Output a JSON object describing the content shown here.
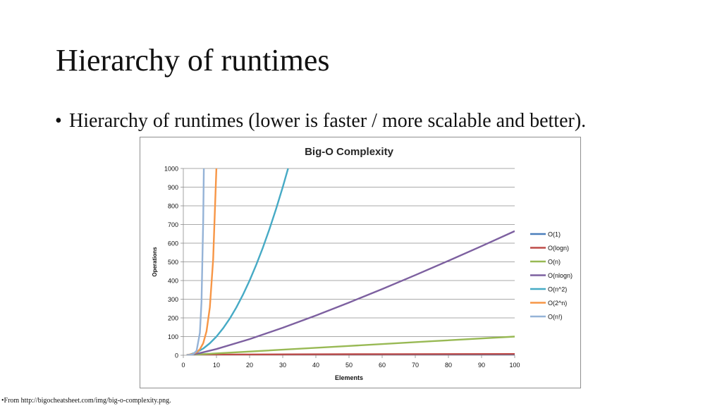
{
  "slide": {
    "title": "Hierarchy of runtimes",
    "bullet_marker": "•",
    "bullet_text": "Hierarchy of runtimes (lower is faster / more scalable and better).",
    "footnote_marker": "•",
    "footnote_text": "From http://bigocheatsheet.com/img/big-o-complexity.png."
  },
  "chart_data": {
    "type": "line",
    "title": "Big-O Complexity",
    "xlabel": "Elements",
    "ylabel": "Operations",
    "xlim": [
      0,
      100
    ],
    "ylim": [
      0,
      1000
    ],
    "x_ticks": [
      0,
      10,
      20,
      30,
      40,
      50,
      60,
      70,
      80,
      90,
      100
    ],
    "y_ticks": [
      0,
      100,
      200,
      300,
      400,
      500,
      600,
      700,
      800,
      900,
      1000
    ],
    "grid": "horizontal",
    "legend_position": "right",
    "series": [
      {
        "name": "O(1)",
        "color": "#4a7ebb",
        "x": [
          1,
          100
        ],
        "y": [
          1,
          1
        ]
      },
      {
        "name": "O(logn)",
        "color": "#be4b48",
        "x": [
          2,
          4,
          8,
          16,
          32,
          64,
          100
        ],
        "y": [
          1,
          2,
          3,
          4,
          5,
          6,
          6.64
        ]
      },
      {
        "name": "O(n)",
        "color": "#98b954",
        "x": [
          1,
          25,
          50,
          75,
          100
        ],
        "y": [
          1,
          25,
          50,
          75,
          100
        ]
      },
      {
        "name": "O(nlogn)",
        "color": "#7d60a0",
        "x": [
          1,
          2,
          5,
          10,
          20,
          30,
          40,
          50,
          60,
          70,
          80,
          90,
          100
        ],
        "y": [
          0,
          2,
          11.6,
          33.2,
          86.4,
          147.2,
          212.9,
          282.2,
          354.4,
          429.1,
          505.8,
          584.3,
          664.4
        ]
      },
      {
        "name": "O(n^2)",
        "color": "#46aac5",
        "x": [
          1,
          2,
          4,
          6,
          8,
          10,
          12,
          14,
          16,
          18,
          20,
          22,
          24,
          26,
          28,
          30,
          31.62
        ],
        "y": [
          1,
          4,
          16,
          36,
          64,
          100,
          144,
          196,
          256,
          324,
          400,
          484,
          576,
          676,
          784,
          900,
          1000
        ]
      },
      {
        "name": "O(2^n)",
        "color": "#f79646",
        "x": [
          1,
          2,
          3,
          4,
          5,
          6,
          7,
          8,
          9,
          9.97
        ],
        "y": [
          2,
          4,
          8,
          16,
          32,
          64,
          128,
          256,
          512,
          1000
        ]
      },
      {
        "name": "O(n!)",
        "color": "#95b3d7",
        "x": [
          1,
          2,
          3,
          4,
          5,
          5.5,
          6,
          6.2
        ],
        "y": [
          1,
          2,
          6,
          24,
          120,
          287,
          720,
          1000
        ]
      }
    ]
  }
}
